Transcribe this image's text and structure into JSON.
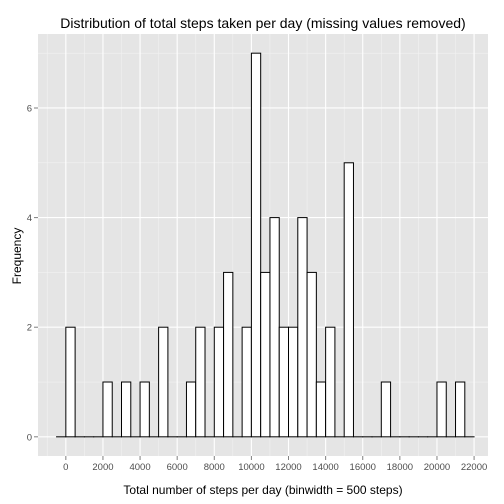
{
  "chart_data": {
    "type": "bar",
    "title": "Distribution of total steps taken per day (missing values removed)",
    "xlabel": "Total number of steps per day (binwidth = 500 steps)",
    "ylabel": "Frequency",
    "xlim": [
      -1500,
      22750
    ],
    "ylim": [
      -0.35,
      7.35
    ],
    "binwidth": 500,
    "x_ticks": [
      0,
      2000,
      4000,
      6000,
      8000,
      10000,
      12000,
      14000,
      16000,
      18000,
      20000,
      22000
    ],
    "x_tick_labels": [
      "0",
      "2000",
      "4000",
      "6000",
      "8000",
      "10000",
      "12000",
      "14000",
      "16000",
      "18000",
      "20000",
      "22000"
    ],
    "y_ticks": [
      0,
      2,
      4,
      6
    ],
    "y_tick_labels": [
      "0",
      "2",
      "4",
      "6"
    ],
    "bin_starts": [
      -500,
      0,
      500,
      1000,
      1500,
      2000,
      2500,
      3000,
      3500,
      4000,
      4500,
      5000,
      5500,
      6000,
      6500,
      7000,
      7500,
      8000,
      8500,
      9000,
      9500,
      10000,
      10500,
      11000,
      11500,
      12000,
      12500,
      13000,
      13500,
      14000,
      14500,
      15000,
      15500,
      16000,
      16500,
      17000,
      17500,
      18000,
      18500,
      19000,
      19500,
      20000,
      20500,
      21000,
      21500
    ],
    "values": [
      0,
      2,
      0,
      0,
      0,
      1,
      0,
      1,
      0,
      1,
      0,
      2,
      0,
      0,
      1,
      2,
      0,
      2,
      3,
      0,
      2,
      7,
      3,
      4,
      2,
      2,
      4,
      3,
      1,
      2,
      0,
      5,
      0,
      0,
      0,
      1,
      0,
      0,
      0,
      0,
      0,
      1,
      0,
      1,
      0
    ],
    "grid": true,
    "colors": {
      "panel_background": "#e5e5e5",
      "grid_major": "#ffffff",
      "grid_minor": "#f2f2f2",
      "bar_fill": "#ffffff",
      "bar_outline": "#000000",
      "tick_label": "#4d4d4d"
    }
  }
}
